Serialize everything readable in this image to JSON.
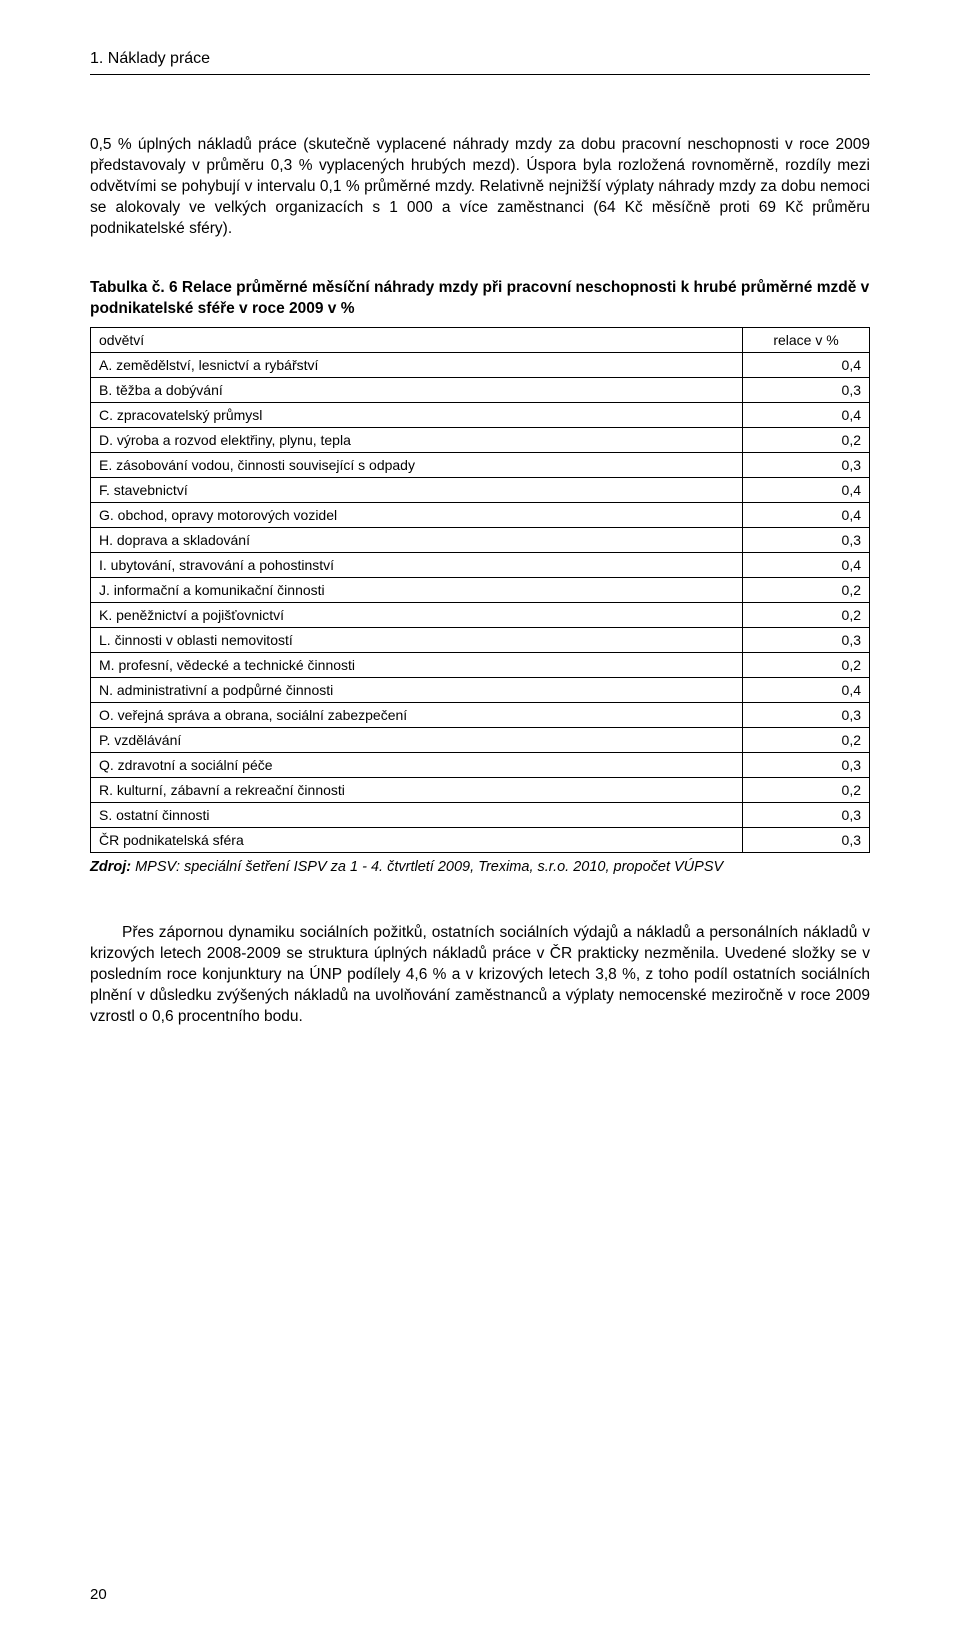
{
  "heading": "1. Náklady práce",
  "paragraph1": "0,5 % úplných nákladů práce (skutečně vyplacené náhrady mzdy za dobu pracovní neschopnosti v roce 2009 představovaly v průměru 0,3 % vyplacených hrubých mezd). Úspora byla rozložená rovnoměrně, rozdíly mezi odvětvími se pohybují v intervalu 0,1 % průměrné mzdy. Relativně nejnižší výplaty náhrady mzdy za dobu nemoci se alokovaly ve velkých organizacích s 1 000 a více zaměstnanci (64 Kč měsíčně proti 69 Kč průměru podnikatelské sféry).",
  "tableTitle": "Tabulka č. 6 Relace průměrné měsíční náhrady mzdy při pracovní neschopnosti k hrubé průměrné mzdě v podnikatelské sféře v roce 2009 v %",
  "table": {
    "columns": [
      "odvětví",
      "relace v %"
    ],
    "col_widths": [
      "auto",
      "110px"
    ],
    "header_align": [
      "left",
      "center"
    ],
    "cell_align": [
      "left",
      "right"
    ],
    "border_color": "#000000",
    "font_size": 14,
    "rows": [
      {
        "label": "A. zemědělství, lesnictví a rybářství",
        "value": "0,4"
      },
      {
        "label": "B. těžba a dobývání",
        "value": "0,3"
      },
      {
        "label": "C. zpracovatelský průmysl",
        "value": "0,4"
      },
      {
        "label": "D. výroba a rozvod elektřiny, plynu, tepla",
        "value": "0,2"
      },
      {
        "label": "E. zásobování vodou, činnosti související s odpady",
        "value": "0,3"
      },
      {
        "label": "F. stavebnictví",
        "value": "0,4"
      },
      {
        "label": "G. obchod, opravy motorových vozidel",
        "value": "0,4"
      },
      {
        "label": "H. doprava a skladování",
        "value": "0,3"
      },
      {
        "label": "I. ubytování, stravování a pohostinství",
        "value": "0,4"
      },
      {
        "label": "J. informační a komunikační činnosti",
        "value": "0,2"
      },
      {
        "label": "K. peněžnictví a pojišťovnictví",
        "value": "0,2"
      },
      {
        "label": "L. činnosti v oblasti nemovitostí",
        "value": "0,3"
      },
      {
        "label": "M. profesní, vědecké a technické činnosti",
        "value": "0,2"
      },
      {
        "label": "N. administrativní a podpůrné činnosti",
        "value": "0,4"
      },
      {
        "label": "O. veřejná správa a obrana, sociální zabezpečení",
        "value": "0,3"
      },
      {
        "label": "P. vzdělávání",
        "value": "0,2"
      },
      {
        "label": "Q. zdravotní a sociální péče",
        "value": "0,3"
      },
      {
        "label": "R. kulturní, zábavní a rekreační činnosti",
        "value": "0,2"
      },
      {
        "label": "S. ostatní činnosti",
        "value": "0,3"
      },
      {
        "label": "ČR podnikatelská sféra",
        "value": "0,3"
      }
    ]
  },
  "sourceLabel": "Zdroj:",
  "sourceText": " MPSV: speciální šetření ISPV za 1 - 4. čtvrtletí 2009, Trexima, s.r.o. 2010, propočet VÚPSV",
  "paragraph2": "Přes zápornou dynamiku sociálních požitků, ostatních sociálních výdajů a nákladů a personálních nákladů v krizových letech 2008-2009 se struktura úplných nákladů práce v ČR prakticky nezměnila. Uvedené složky se v posledním roce konjunktury na ÚNP podílely 4,6 % a v krizových letech 3,8 %, z toho podíl ostatních sociálních plnění v důsledku zvýšených nákladů na uvolňování zaměstnanců a výplaty nemocenské meziročně v roce 2009 vzrostl o 0,6 procentního bodu.",
  "pageNumber": "20",
  "colors": {
    "text": "#000000",
    "background": "#ffffff",
    "border": "#000000"
  },
  "typography": {
    "body_fontsize": 15.5,
    "table_fontsize": 14,
    "heading_fontsize": 16,
    "font_family": "Verdana"
  }
}
